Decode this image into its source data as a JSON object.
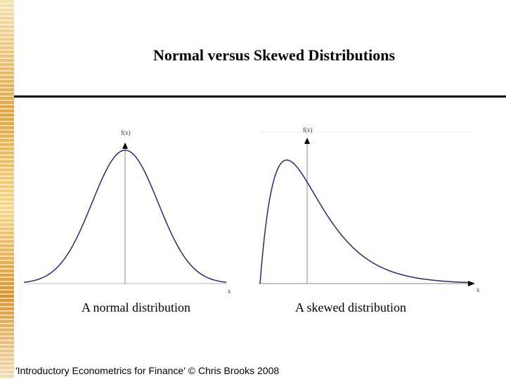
{
  "title": "Normal versus Skewed Distributions",
  "left_plot": {
    "y_axis_label": "f(x)",
    "x_axis_label": "x",
    "caption": "A normal distribution"
  },
  "right_plot": {
    "y_axis_label": "f(x)",
    "x_axis_label": "x",
    "caption": "A skewed distribution"
  },
  "footer": "'Introductory Econometrics for Finance' © Chris Brooks 2008",
  "colors": {
    "curve": "#27277a",
    "axis": "#888888",
    "strip_accent": "#e0a640"
  }
}
